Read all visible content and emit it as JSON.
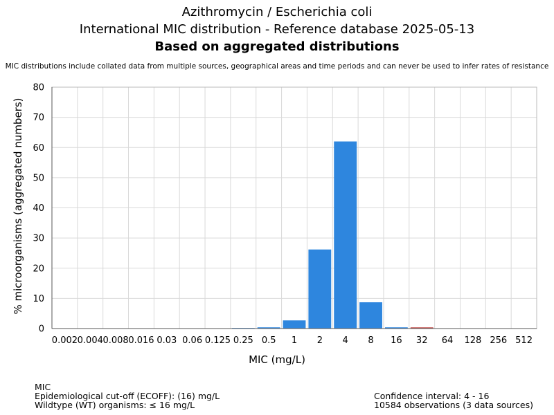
{
  "header": {
    "title_line1": "Azithromycin / Escherichia coli",
    "title_line2": "International MIC distribution - Reference database 2025-05-13",
    "title_line3": "Based on aggregated distributions",
    "note": "MIC distributions include collated data from multiple sources, geographical areas and time periods and can never be used to infer rates of resistance"
  },
  "chart_data": {
    "type": "bar",
    "categories": [
      "0.002",
      "0.004",
      "0.008",
      "0.016",
      "0.03",
      "0.06",
      "0.125",
      "0.25",
      "0.5",
      "1",
      "2",
      "4",
      "8",
      "16",
      "32",
      "64",
      "128",
      "256",
      "512"
    ],
    "values": [
      0,
      0,
      0,
      0,
      0,
      0,
      0,
      0.2,
      0.4,
      2.7,
      26.2,
      62.0,
      8.7,
      0.4,
      0.4,
      0,
      0,
      0,
      0
    ],
    "bar_colors": [
      "#2e86de",
      "#2e86de",
      "#2e86de",
      "#2e86de",
      "#2e86de",
      "#2e86de",
      "#2e86de",
      "#2e86de",
      "#2e86de",
      "#2e86de",
      "#2e86de",
      "#2e86de",
      "#2e86de",
      "#2e86de",
      "#c0504d",
      "#2e86de",
      "#2e86de",
      "#2e86de",
      "#2e86de"
    ],
    "xlabel": "MIC (mg/L)",
    "ylabel": "% microorganisms (aggregated numbers)",
    "ylim": [
      0,
      80
    ],
    "yticks": [
      0,
      10,
      20,
      30,
      40,
      50,
      60,
      70,
      80
    ],
    "grid": true,
    "colors": {
      "wildtype": "#2e86de",
      "non_wildtype": "#c0504d",
      "grid": "#d9d9d9",
      "axis": "#555555"
    }
  },
  "footer": {
    "left_line1": "MIC",
    "left_line2": "Epidemiological cut-off (ECOFF): (16) mg/L",
    "left_line3": "Wildtype (WT) organisms: ≤ 16 mg/L",
    "right_line1": "Confidence interval: 4 - 16",
    "right_line2": "10584 observations (3 data sources)"
  }
}
